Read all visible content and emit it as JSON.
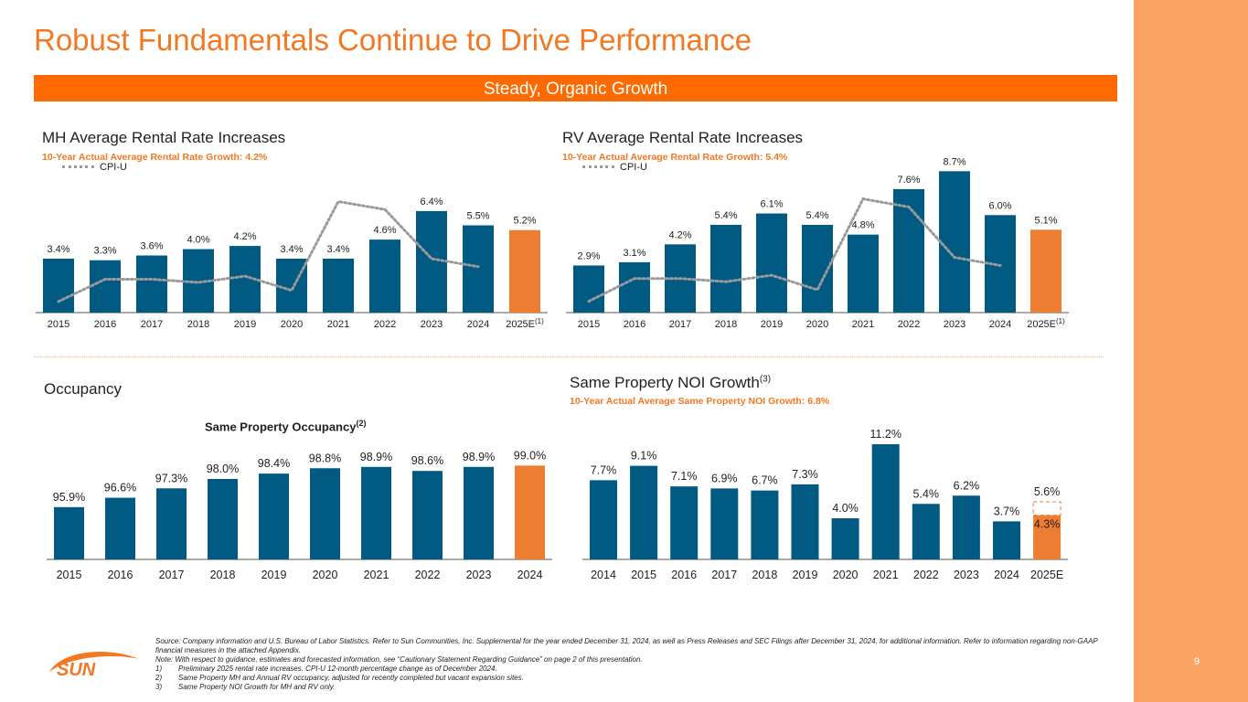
{
  "title": "Robust Fundamentals Continue to Drive Performance",
  "banner": "Steady, Organic Growth",
  "page_number": "9",
  "colors": {
    "accent": "#F47721",
    "banner": "#FF6A00",
    "bar": "#005A82",
    "estimate_bar": "#ED7D31",
    "cpi_line": "#9A9A9A",
    "right_band": "#FCA464"
  },
  "logo_text": "SUN",
  "mh": {
    "title": "MH Average Rental Rate Increases",
    "subtitle": "10-Year Actual Average Rental Rate Growth: 4.2%",
    "legend": "CPI-U",
    "footnote_ref": "(1)"
  },
  "rv": {
    "title": "RV Average Rental Rate Increases",
    "subtitle": "10-Year Actual Average Rental Rate Growth: 5.4%",
    "legend": "CPI-U",
    "footnote_ref": "(1)"
  },
  "occ": {
    "title": "Occupancy",
    "chart_title": "Same Property Occupancy",
    "chart_title_ref": "(2)"
  },
  "noi": {
    "title": "Same Property NOI Growth",
    "title_ref": "(3)",
    "subtitle": "10-Year Actual Average Same Property NOI Growth: 6.8%"
  },
  "footnotes": {
    "source": "Source: Company information and U.S. Bureau of Labor Statistics. Refer to Sun Communities, Inc. Supplemental for the year ended December 31, 2024, as well as Press Releases and SEC Filings after December 31, 2024, for additional information. Refer to information regarding non-GAAP financial measures in the attached Appendix.",
    "note": "Note: With respect to guidance, estimates and forecasted information, see “Cautionary Statement Regarding Guidance” on page 2 of this presentation.",
    "items": [
      {
        "num": "1)",
        "text": "Preliminary 2025 rental rate increases. CPI-U 12-month percentage change as of December 2024."
      },
      {
        "num": "2)",
        "text": "Same Property MH and Annual RV occupancy, adjusted for recently completed but vacant expansion sites."
      },
      {
        "num": "3)",
        "text": "Same Property NOI Growth for MH and RV only."
      }
    ]
  },
  "chart_data": [
    {
      "id": "mh",
      "type": "bar",
      "title": "MH Average Rental Rate Increases",
      "categories": [
        "2015",
        "2016",
        "2017",
        "2018",
        "2019",
        "2020",
        "2021",
        "2022",
        "2023",
        "2024",
        "2025E"
      ],
      "values": [
        3.4,
        3.3,
        3.6,
        4.0,
        4.2,
        3.4,
        3.4,
        4.6,
        6.4,
        5.5,
        5.2
      ],
      "labels": [
        "3.4%",
        "3.3%",
        "3.6%",
        "4.0%",
        "4.2%",
        "3.4%",
        "3.4%",
        "4.6%",
        "6.4%",
        "5.5%",
        "5.2%"
      ],
      "estimate_index": 10,
      "ylim": [
        0,
        7.2
      ],
      "cpi_series": {
        "name": "CPI-U",
        "values": [
          0.7,
          2.1,
          2.1,
          1.9,
          2.3,
          1.4,
          7.0,
          6.5,
          3.4,
          2.9
        ]
      }
    },
    {
      "id": "rv",
      "type": "bar",
      "title": "RV Average Rental Rate Increases",
      "categories": [
        "2015",
        "2016",
        "2017",
        "2018",
        "2019",
        "2020",
        "2021",
        "2022",
        "2023",
        "2024",
        "2025E"
      ],
      "values": [
        2.9,
        3.1,
        4.2,
        5.4,
        6.1,
        5.4,
        4.8,
        7.6,
        8.7,
        6.0,
        5.1
      ],
      "labels": [
        "2.9%",
        "3.1%",
        "4.2%",
        "5.4%",
        "6.1%",
        "5.4%",
        "4.8%",
        "7.6%",
        "8.7%",
        "6.0%",
        "5.1%"
      ],
      "estimate_index": 10,
      "ylim": [
        0,
        9.0
      ],
      "cpi_series": {
        "name": "CPI-U",
        "values": [
          0.7,
          2.1,
          2.1,
          1.9,
          2.3,
          1.4,
          7.0,
          6.5,
          3.4,
          2.9
        ]
      }
    },
    {
      "id": "occ",
      "type": "bar",
      "title": "Same Property Occupancy",
      "categories": [
        "2015",
        "2016",
        "2017",
        "2018",
        "2019",
        "2020",
        "2021",
        "2022",
        "2023",
        "2024"
      ],
      "values": [
        95.9,
        96.6,
        97.3,
        98.0,
        98.4,
        98.8,
        98.9,
        98.6,
        98.9,
        99.0
      ],
      "labels": [
        "95.9%",
        "96.6%",
        "97.3%",
        "98.0%",
        "98.4%",
        "98.8%",
        "98.9%",
        "98.6%",
        "98.9%",
        "99.0%"
      ],
      "estimate_index": 9,
      "ylim": [
        92.0,
        99.5
      ]
    },
    {
      "id": "noi",
      "type": "bar",
      "title": "Same Property NOI Growth",
      "categories": [
        "2014",
        "2015",
        "2016",
        "2017",
        "2018",
        "2019",
        "2020",
        "2021",
        "2022",
        "2023",
        "2024",
        "2025E"
      ],
      "values": [
        7.7,
        9.1,
        7.1,
        6.9,
        6.7,
        7.3,
        4.0,
        11.2,
        5.4,
        6.2,
        3.7,
        4.3
      ],
      "labels": [
        "7.7%",
        "9.1%",
        "7.1%",
        "6.9%",
        "6.7%",
        "7.3%",
        "4.0%",
        "11.2%",
        "5.4%",
        "6.2%",
        "3.7%",
        "4.3%"
      ],
      "estimate_index": 11,
      "estimate_range": {
        "low": 4.3,
        "high": 5.6,
        "high_label": "5.6%"
      },
      "ylim": [
        0,
        11.2
      ]
    }
  ]
}
